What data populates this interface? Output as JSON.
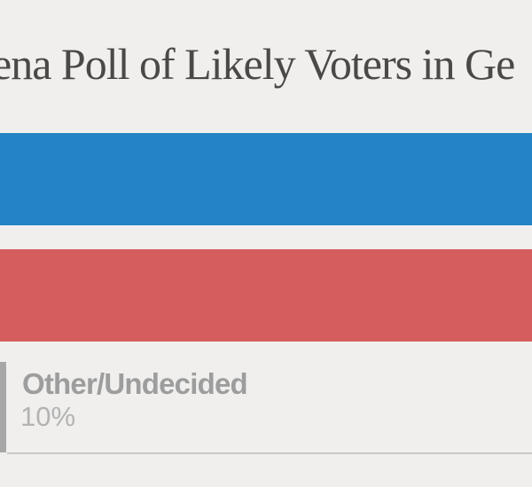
{
  "colors": {
    "background": "#f0efee",
    "title_text": "#4a4947",
    "bar_blue": "#2483c4",
    "bar_red": "#d65d5d",
    "bar_gray": "#a7a7a7",
    "label_text": "#9d9d9d",
    "value_text": "#b3b3b3",
    "divider": "#c9c9c9"
  },
  "chart_data": {
    "type": "bar",
    "orientation": "horizontal",
    "title": "ena Poll of Likely Voters in Ge",
    "title_note": "title clipped at both left and right edges of the viewport",
    "axes": "none",
    "gridlines": "off",
    "legend": "none",
    "bars": [
      {
        "label": "",
        "value_label": "",
        "color": "#2483c4",
        "note": "bar extends past both edges; label not visible in crop"
      },
      {
        "label": "",
        "value_label": "",
        "color": "#d65d5d",
        "note": "bar extends past both edges; label not visible in crop"
      },
      {
        "label": "Other/Undecided",
        "value_label": "10%",
        "value": 10,
        "color": "#a7a7a7",
        "note": "only 7px sliver of bar visible at left edge"
      }
    ]
  }
}
